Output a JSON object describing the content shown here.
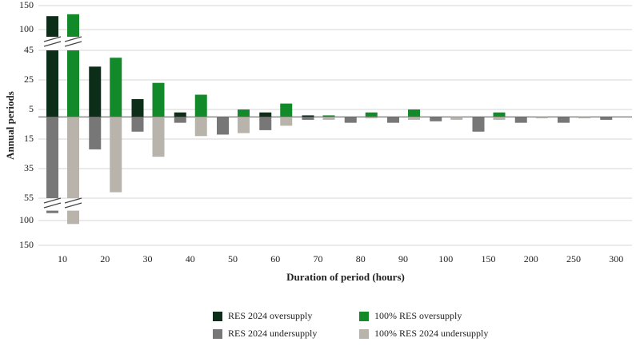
{
  "chart_data": {
    "type": "bar",
    "y_label": "Annual periods",
    "x_label": "Duration of period (hours)",
    "categories": [
      "10",
      "20",
      "30",
      "40",
      "50",
      "60",
      "70",
      "80",
      "90",
      "100",
      "150",
      "200",
      "250",
      "300"
    ],
    "series": [
      {
        "name": "RES 2024 oversupply",
        "color": "#0c2d18",
        "values": [
          128,
          34,
          12,
          3,
          0,
          3,
          1,
          0,
          0,
          0,
          0,
          0,
          0,
          0
        ]
      },
      {
        "name": "100% RES oversupply",
        "color": "#138a2a",
        "values": [
          132,
          40,
          23,
          15,
          5,
          9,
          1,
          3,
          5,
          0,
          3,
          0,
          0,
          0
        ]
      },
      {
        "name": "RES 2024 undersupply",
        "color": "#777777",
        "values": [
          -85,
          -22,
          -10,
          -4,
          -12,
          -9,
          -2,
          -4,
          -4,
          -3,
          -10,
          -4,
          -4,
          -2
        ]
      },
      {
        "name": "100% RES 2024 undersupply",
        "color": "#b9b4ab",
        "values": [
          -107,
          -51,
          -27,
          -13,
          -11,
          -6,
          -2,
          -1,
          -2,
          -2,
          -2,
          -1,
          -1,
          0
        ]
      }
    ],
    "y_segments": [
      {
        "ylim": [
          85,
          150
        ],
        "yticks": [
          100,
          150
        ]
      },
      {
        "ylim": [
          -55,
          45
        ],
        "yticks": [
          45,
          25,
          5,
          {
            "value": -15,
            "label": "15"
          },
          {
            "value": -35,
            "label": "35"
          },
          {
            "value": -55,
            "label": "55"
          }
        ]
      },
      {
        "ylim": [
          -150,
          -80
        ],
        "yticks": [
          {
            "value": -100,
            "label": "100"
          },
          {
            "value": -150,
            "label": "150"
          }
        ]
      }
    ],
    "grid": true
  }
}
